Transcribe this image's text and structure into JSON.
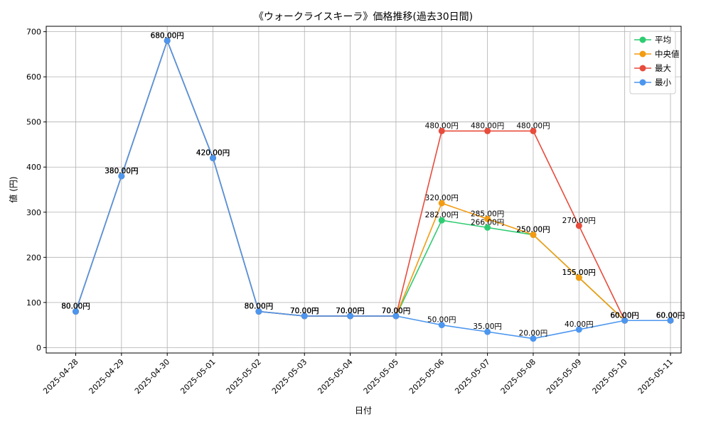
{
  "chart_data": {
    "type": "line",
    "title": "《ウォークライスキーラ》価格推移(過去30日間)",
    "xlabel": "日付",
    "ylabel": "値 (円)",
    "ylim": [
      -12,
      712
    ],
    "yticks": [
      0,
      100,
      200,
      300,
      400,
      500,
      600,
      700
    ],
    "grid": true,
    "legend_position": "top-right",
    "value_suffix": "円",
    "categories": [
      "2025-04-28",
      "2025-04-29",
      "2025-04-30",
      "2025-05-01",
      "2025-05-02",
      "2025-05-03",
      "2025-05-04",
      "2025-05-05",
      "2025-05-06",
      "2025-05-07",
      "2025-05-08",
      "2025-05-09",
      "2025-05-10",
      "2025-05-11"
    ],
    "series": [
      {
        "name": "平均",
        "color": "#2ecc71",
        "values": [
          80,
          380,
          680,
          420,
          80,
          70,
          70,
          70,
          282,
          266,
          250,
          155,
          60,
          60
        ]
      },
      {
        "name": "中央値",
        "color": "#f39c12",
        "values": [
          80,
          380,
          680,
          420,
          80,
          70,
          70,
          70,
          320,
          285,
          250,
          155,
          60,
          60
        ]
      },
      {
        "name": "最大",
        "color": "#e74c3c",
        "values": [
          80,
          380,
          680,
          420,
          80,
          70,
          70,
          70,
          480,
          480,
          480,
          270,
          60,
          60
        ]
      },
      {
        "name": "最小",
        "color": "#4c96ef",
        "values": [
          80,
          380,
          680,
          420,
          80,
          70,
          70,
          70,
          50,
          35,
          20,
          40,
          60,
          60
        ]
      }
    ]
  }
}
